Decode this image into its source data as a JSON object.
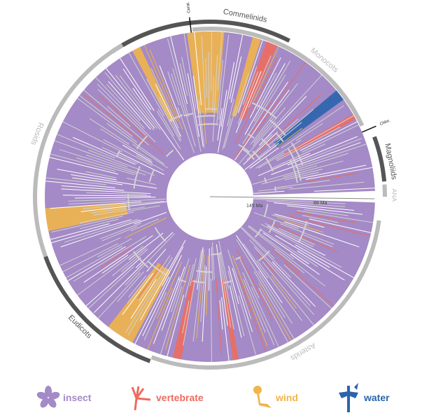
{
  "clades": [
    {
      "label": "Commelinids",
      "shade": "dark"
    },
    {
      "label": "Monocots",
      "shade": "light"
    },
    {
      "label": "Cerat.",
      "shade": "tick"
    },
    {
      "label": "Chlor.",
      "shade": "tick"
    },
    {
      "label": "Magnoliids",
      "shade": "dark"
    },
    {
      "label": "ANA",
      "shade": "light"
    },
    {
      "label": "Rosids",
      "shade": "light"
    },
    {
      "label": "Eudicots",
      "shade": "dark"
    },
    {
      "label": "Asterids",
      "shade": "light"
    }
  ],
  "time_labels": {
    "inner": "145 Ma",
    "outer": "66 Ma"
  },
  "legend": [
    {
      "label": "insect",
      "color": "#a48ac6",
      "icon": "flower-icon"
    },
    {
      "label": "vertebrate",
      "color": "#ee6b5f",
      "icon": "bird-of-paradise-icon"
    },
    {
      "label": "wind",
      "color": "#f1b54a",
      "icon": "grass-flower-icon"
    },
    {
      "label": "water",
      "color": "#2a64ad",
      "icon": "aquatic-plant-icon"
    }
  ],
  "colors": {
    "insect": "#a48ac6",
    "vertebrate": "#ee6b5f",
    "wind": "#f1b54a",
    "water": "#2a64ad",
    "tree": "#d3d3d3",
    "ring_dark": "#555555",
    "ring_light": "#bbbbbb"
  }
}
